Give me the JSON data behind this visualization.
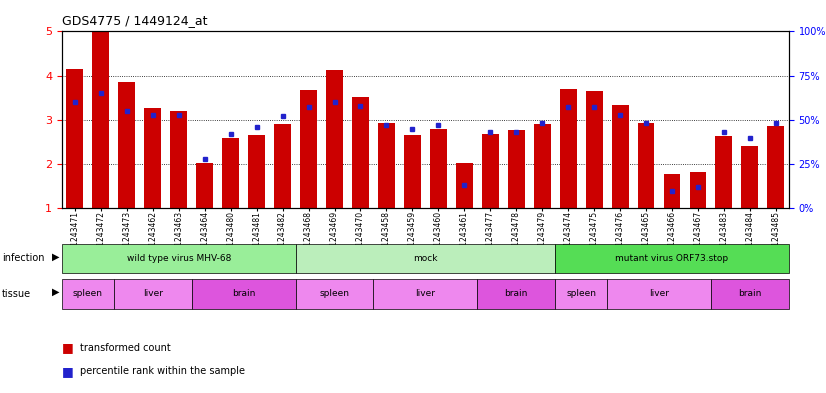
{
  "title": "GDS4775 / 1449124_at",
  "samples": [
    "GSM1243471",
    "GSM1243472",
    "GSM1243473",
    "GSM1243462",
    "GSM1243463",
    "GSM1243464",
    "GSM1243480",
    "GSM1243481",
    "GSM1243482",
    "GSM1243468",
    "GSM1243469",
    "GSM1243470",
    "GSM1243458",
    "GSM1243459",
    "GSM1243460",
    "GSM1243461",
    "GSM1243477",
    "GSM1243478",
    "GSM1243479",
    "GSM1243474",
    "GSM1243475",
    "GSM1243476",
    "GSM1243465",
    "GSM1243466",
    "GSM1243467",
    "GSM1243483",
    "GSM1243484",
    "GSM1243485"
  ],
  "transformed_count": [
    4.15,
    5.0,
    3.85,
    3.27,
    3.2,
    2.03,
    2.6,
    2.65,
    2.9,
    3.67,
    4.12,
    3.52,
    2.92,
    2.65,
    2.8,
    2.03,
    2.67,
    2.78,
    2.9,
    3.7,
    3.65,
    3.33,
    2.92,
    1.78,
    1.82,
    2.63,
    2.4,
    2.87
  ],
  "percentile_rank": [
    60,
    65,
    55,
    53,
    53,
    28,
    42,
    46,
    52,
    57,
    60,
    58,
    47,
    45,
    47,
    13,
    43,
    43,
    48,
    57,
    57,
    53,
    48,
    10,
    12,
    43,
    40,
    48
  ],
  "bar_color": "#cc0000",
  "percentile_color": "#2222cc",
  "ylim_left": [
    1,
    5
  ],
  "ylim_right": [
    0,
    100
  ],
  "yticks_left": [
    1,
    2,
    3,
    4,
    5
  ],
  "yticks_right": [
    0,
    25,
    50,
    75,
    100
  ],
  "infection_groups": [
    {
      "label": "wild type virus MHV-68",
      "start": 0,
      "end": 9,
      "color": "#99ee99"
    },
    {
      "label": "mock",
      "start": 9,
      "end": 19,
      "color": "#bbeebb"
    },
    {
      "label": "mutant virus ORF73.stop",
      "start": 19,
      "end": 28,
      "color": "#55dd55"
    }
  ],
  "tissue_groups": [
    {
      "label": "spleen",
      "start": 0,
      "end": 2,
      "color": "#ee88ee"
    },
    {
      "label": "liver",
      "start": 2,
      "end": 5,
      "color": "#ee88ee"
    },
    {
      "label": "brain",
      "start": 5,
      "end": 9,
      "color": "#dd55dd"
    },
    {
      "label": "spleen",
      "start": 9,
      "end": 12,
      "color": "#ee88ee"
    },
    {
      "label": "liver",
      "start": 12,
      "end": 16,
      "color": "#ee88ee"
    },
    {
      "label": "brain",
      "start": 16,
      "end": 19,
      "color": "#dd55dd"
    },
    {
      "label": "spleen",
      "start": 19,
      "end": 21,
      "color": "#ee88ee"
    },
    {
      "label": "liver",
      "start": 21,
      "end": 25,
      "color": "#ee88ee"
    },
    {
      "label": "brain",
      "start": 25,
      "end": 28,
      "color": "#dd55dd"
    }
  ],
  "background_color": "#ffffff",
  "bar_width": 0.65
}
